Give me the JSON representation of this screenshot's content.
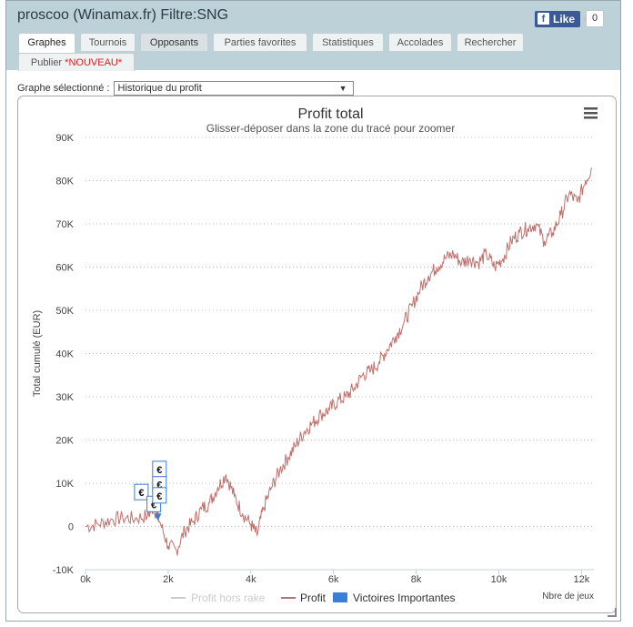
{
  "window": {
    "title": "proscoo (Winamax.fr) Filtre:SNG"
  },
  "facebook": {
    "like_label": "Like",
    "like_count": "0"
  },
  "tabs": [
    {
      "label": "Graphes",
      "state": "active"
    },
    {
      "label": "Tournois"
    },
    {
      "label": "Opposants",
      "state": "hover"
    },
    {
      "label": "Parties favorites"
    },
    {
      "label": "Statistiques"
    },
    {
      "label": "Accolades"
    },
    {
      "label": "Rechercher"
    }
  ],
  "publish_tab": {
    "label": "Publier",
    "badge": "*NOUVEAU*"
  },
  "graph_select": {
    "label": "Graphe sélectionné :",
    "value": "Historique du profit"
  },
  "menu_icon": "hamburger-menu-icon",
  "chart_data": {
    "type": "line",
    "title": "Profit total",
    "subtitle": "Glisser-déposer dans la zone du tracé pour zoomer",
    "ylabel": "Total cumulé (EUR)",
    "xlabel": "Nbre de jeux",
    "ylim": [
      -10000,
      90000
    ],
    "xlim": [
      0,
      12300
    ],
    "y_ticks": [
      "-10K",
      "0",
      "10K",
      "20K",
      "30K",
      "40K",
      "50K",
      "60K",
      "70K",
      "80K",
      "90K"
    ],
    "x_ticks": [
      "0k",
      "2k",
      "4k",
      "6k",
      "8k",
      "10k",
      "12k"
    ],
    "grid": true,
    "series": [
      {
        "name": "Profit",
        "color": "#c0706d",
        "x": [
          0,
          300,
          600,
          900,
          1200,
          1500,
          1650,
          1800,
          2000,
          2200,
          2400,
          2600,
          2800,
          3000,
          3200,
          3400,
          3600,
          3800,
          4000,
          4150,
          4300,
          4500,
          4700,
          4900,
          5100,
          5300,
          5500,
          5700,
          5900,
          6100,
          6300,
          6500,
          6700,
          6900,
          7100,
          7300,
          7500,
          7700,
          7900,
          8100,
          8300,
          8500,
          8700,
          8900,
          9100,
          9300,
          9500,
          9700,
          9900,
          10100,
          10300,
          10500,
          10700,
          10900,
          11100,
          11300,
          11500,
          11700,
          11900,
          12100,
          12250
        ],
        "y": [
          0,
          500,
          1500,
          2000,
          1800,
          2500,
          4500,
          1000,
          -4500,
          -5500,
          -1000,
          1000,
          4000,
          5500,
          9000,
          12000,
          7000,
          3000,
          500,
          -2000,
          4000,
          9000,
          13000,
          16000,
          19000,
          22000,
          24000,
          26000,
          27000,
          29000,
          30000,
          32000,
          35000,
          36000,
          38000,
          41000,
          44000,
          47000,
          51000,
          55000,
          58000,
          60000,
          62000,
          63000,
          61000,
          62000,
          61000,
          63000,
          60000,
          62000,
          66000,
          68000,
          69000,
          70000,
          66000,
          68000,
          72000,
          77000,
          75000,
          80000,
          83000
        ]
      },
      {
        "name": "Profit hors rake",
        "color": "#cccccc",
        "hidden": true
      }
    ],
    "flags_series": {
      "name": "Victoires Importantes",
      "color": "#3a7fd5",
      "symbol": "€",
      "points": [
        {
          "x": 1450,
          "y": 2800
        },
        {
          "x": 1620,
          "y": 3200
        },
        {
          "x": 1800,
          "y": 3500
        },
        {
          "x": 1800,
          "y": 2900
        },
        {
          "x": 1800,
          "y": 3300
        }
      ]
    },
    "legend": {
      "items": [
        "Profit hors rake",
        "Profit",
        "Victoires Importantes"
      ],
      "placement": "bottom"
    }
  }
}
